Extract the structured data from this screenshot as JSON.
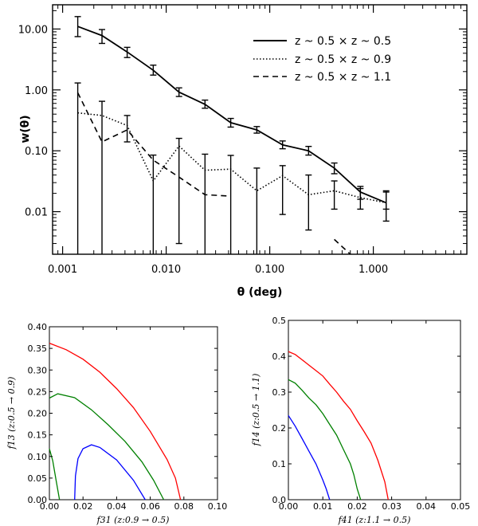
{
  "chart_data": [
    {
      "type": "line",
      "xscale": "log",
      "yscale": "log",
      "xlim": [
        0.0008,
        8.0
      ],
      "ylim": [
        0.002,
        25
      ],
      "xlabel": "θ (deg)",
      "ylabel": "w(θ)",
      "xticks": [
        "0.001",
        "0.010",
        "0.100",
        "1.000"
      ],
      "yticks": [
        "10.00",
        "1.00",
        "0.10",
        "0.01"
      ],
      "legend_position": "top-right",
      "series": [
        {
          "name": "z ~ 0.5 × z ~ 0.5",
          "style": "solid",
          "x": [
            0.0014,
            0.0024,
            0.0042,
            0.0075,
            0.0133,
            0.0237,
            0.042,
            0.075,
            0.133,
            0.237,
            0.42,
            0.75,
            1.33
          ],
          "y": [
            11.0,
            7.8,
            4.2,
            2.1,
            0.92,
            0.58,
            0.29,
            0.22,
            0.125,
            0.1,
            0.052,
            0.021,
            0.014
          ],
          "yerr_lo": [
            7.5,
            5.8,
            3.4,
            1.75,
            0.78,
            0.5,
            0.245,
            0.195,
            0.108,
            0.085,
            0.042,
            0.016,
            0.007
          ],
          "yerr_hi": [
            16.0,
            9.8,
            5.0,
            2.55,
            1.08,
            0.68,
            0.34,
            0.25,
            0.145,
            0.118,
            0.063,
            0.026,
            0.021
          ]
        },
        {
          "name": "z ~ 0.5 × z ~ 0.9",
          "style": "dotted",
          "x": [
            0.0014,
            0.0024,
            0.0042,
            0.0075,
            0.0133,
            0.0237,
            0.042,
            0.075,
            0.133,
            0.237,
            0.42,
            0.75,
            1.33
          ],
          "y": [
            0.42,
            0.38,
            0.26,
            0.032,
            0.12,
            0.048,
            0.05,
            0.022,
            0.039,
            0.019,
            0.022,
            0.017,
            0.014
          ],
          "yerr_lo": [
            0.002,
            0.002,
            0.14,
            0.002,
            0.003,
            0.002,
            0.002,
            0.002,
            0.009,
            0.005,
            0.011,
            0.011,
            0.011
          ],
          "yerr_hi": [
            1.3,
            0.65,
            0.38,
            0.085,
            0.16,
            0.088,
            0.084,
            0.052,
            0.057,
            0.04,
            0.032,
            0.024,
            0.022
          ]
        },
        {
          "name": "z ~ 0.5 × z ~ 1.1",
          "style": "dashed",
          "x": [
            0.0014,
            0.0024,
            0.0042,
            0.0075,
            0.0133,
            0.0237,
            0.042,
            0.075,
            0.133,
            0.237,
            0.42,
            0.6
          ],
          "y": [
            0.9,
            0.14,
            0.22,
            0.07,
            0.037,
            0.019,
            0.018,
            null,
            null,
            null,
            0.0035,
            0.002
          ]
        }
      ]
    },
    {
      "type": "line",
      "xlim": [
        0.0,
        0.1
      ],
      "ylim": [
        0.0,
        0.4
      ],
      "xlabel": "f31   (z:0.9 → 0.5)",
      "ylabel": "f13   (z:0.5 → 0.9)",
      "xticks": [
        "0.00",
        "0.02",
        "0.04",
        "0.06",
        "0.08",
        "0.10"
      ],
      "yticks": [
        "0.00",
        "0.05",
        "0.10",
        "0.15",
        "0.20",
        "0.25",
        "0.30",
        "0.35",
        "0.40"
      ],
      "series": [
        {
          "name": "red",
          "color": "#ff0000",
          "x": [
            0.0,
            0.01,
            0.02,
            0.03,
            0.04,
            0.05,
            0.06,
            0.07,
            0.075,
            0.078
          ],
          "y": [
            0.362,
            0.347,
            0.325,
            0.295,
            0.257,
            0.213,
            0.158,
            0.093,
            0.05,
            0.0
          ]
        },
        {
          "name": "green",
          "color": "#008000",
          "x": [
            0.0,
            0.005,
            0.015,
            0.025,
            0.035,
            0.045,
            0.055,
            0.062,
            0.068
          ],
          "y": [
            0.235,
            0.245,
            0.236,
            0.208,
            0.173,
            0.135,
            0.088,
            0.045,
            0.0
          ]
        },
        {
          "name": "green-small",
          "color": "#008000",
          "x": [
            0.0,
            0.002,
            0.004,
            0.006
          ],
          "y": [
            0.118,
            0.09,
            0.045,
            0.0
          ]
        },
        {
          "name": "blue",
          "color": "#0000ff",
          "x": [
            0.015,
            0.0155,
            0.017,
            0.02,
            0.025,
            0.03,
            0.04,
            0.05,
            0.057
          ],
          "y": [
            0.0,
            0.055,
            0.095,
            0.118,
            0.127,
            0.121,
            0.092,
            0.045,
            0.0
          ]
        }
      ]
    },
    {
      "type": "line",
      "xlim": [
        0.0,
        0.05
      ],
      "ylim": [
        0.0,
        0.5
      ],
      "xlabel": "f41   (z:1.1 → 0.5)",
      "ylabel": "f14   (z:0.5 → 1.1)",
      "xticks": [
        "0.00",
        "0.01",
        "0.02",
        "0.03",
        "0.04",
        "0.05"
      ],
      "yticks": [
        "0.0",
        "0.1",
        "0.2",
        "0.3",
        "0.4",
        "0.5"
      ],
      "series": [
        {
          "name": "red",
          "color": "#ff0000",
          "x": [
            0.0,
            0.002,
            0.004,
            0.006,
            0.008,
            0.01,
            0.012,
            0.014,
            0.016,
            0.018,
            0.02,
            0.022,
            0.024,
            0.026,
            0.028,
            0.029
          ],
          "y": [
            0.413,
            0.405,
            0.39,
            0.375,
            0.36,
            0.345,
            0.322,
            0.3,
            0.275,
            0.252,
            0.22,
            0.19,
            0.158,
            0.11,
            0.05,
            0.0
          ]
        },
        {
          "name": "green",
          "color": "#008000",
          "x": [
            0.0,
            0.002,
            0.004,
            0.006,
            0.008,
            0.01,
            0.012,
            0.014,
            0.016,
            0.018,
            0.019,
            0.02,
            0.021
          ],
          "y": [
            0.335,
            0.325,
            0.305,
            0.283,
            0.265,
            0.24,
            0.21,
            0.18,
            0.14,
            0.1,
            0.07,
            0.03,
            0.0
          ]
        },
        {
          "name": "blue",
          "color": "#0000ff",
          "x": [
            0.0,
            0.002,
            0.004,
            0.006,
            0.008,
            0.01,
            0.011,
            0.012
          ],
          "y": [
            0.235,
            0.205,
            0.17,
            0.135,
            0.1,
            0.055,
            0.03,
            0.0
          ]
        }
      ]
    }
  ]
}
